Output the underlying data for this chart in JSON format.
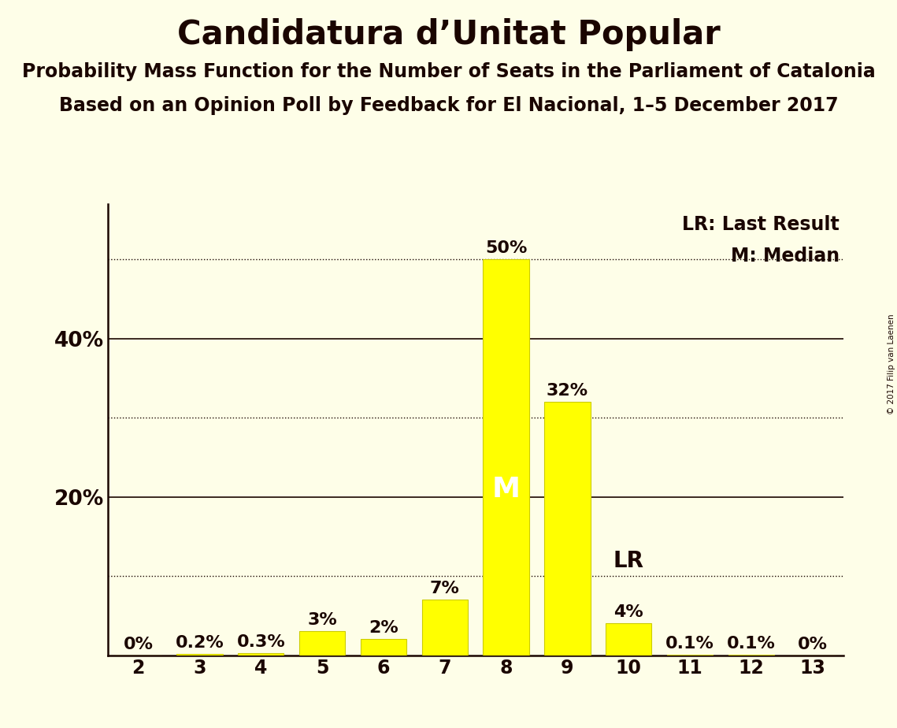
{
  "title": "Candidatura d’Unitat Popular",
  "subtitle1": "Probability Mass Function for the Number of Seats in the Parliament of Catalonia",
  "subtitle2": "Based on an Opinion Poll by Feedback for El Nacional, 1–5 December 2017",
  "copyright": "© 2017 Filip van Laenen",
  "seats": [
    2,
    3,
    4,
    5,
    6,
    7,
    8,
    9,
    10,
    11,
    12,
    13
  ],
  "probabilities": [
    0.0,
    0.2,
    0.3,
    3.0,
    2.0,
    7.0,
    50.0,
    32.0,
    4.0,
    0.1,
    0.1,
    0.0
  ],
  "bar_color": "#FFFF00",
  "bar_edge_color": "#CCCC00",
  "background_color": "#FEFEE8",
  "median_seat": 8,
  "last_result_seat": 10,
  "label_color": "#1A0500",
  "median_label_color": "#FFFFFF",
  "solid_lines": [
    20,
    40
  ],
  "dotted_lines": [
    10,
    30,
    50
  ],
  "yticks": [
    0,
    10,
    20,
    30,
    40,
    50
  ],
  "ylim": [
    0,
    57
  ],
  "xlim": [
    1.5,
    13.5
  ],
  "title_fontsize": 30,
  "subtitle_fontsize": 17,
  "bar_label_fontsize": 16,
  "median_fontsize": 26,
  "legend_fontsize": 17,
  "axis_fontsize": 17,
  "lr_label": "LR",
  "m_label": "M",
  "lr_legend": "LR: Last Result",
  "m_legend": "M: Median",
  "bar_labels": [
    "0%",
    "0.2%",
    "0.3%",
    "3%",
    "2%",
    "7%",
    "50%",
    "32%",
    "4%",
    "0.1%",
    "0.1%",
    "0%"
  ]
}
